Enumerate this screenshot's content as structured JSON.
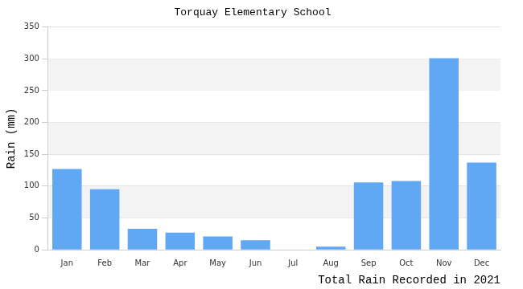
{
  "chart_data": {
    "type": "bar",
    "title": "Torquay Elementary School",
    "x_label": "Total Rain Recorded in 2021",
    "y_label": "Rain (mm)",
    "categories": [
      "Jan",
      "Feb",
      "Mar",
      "Apr",
      "May",
      "Jun",
      "Jul",
      "Aug",
      "Sep",
      "Oct",
      "Nov",
      "Dec"
    ],
    "values": [
      127,
      95,
      33,
      27,
      21,
      15,
      0,
      5,
      106,
      108,
      301,
      137
    ],
    "color": "#60a8f4",
    "ylim": [
      0,
      350
    ],
    "yticks": [
      0,
      50,
      100,
      150,
      200,
      250,
      300,
      350
    ],
    "grid": true
  }
}
